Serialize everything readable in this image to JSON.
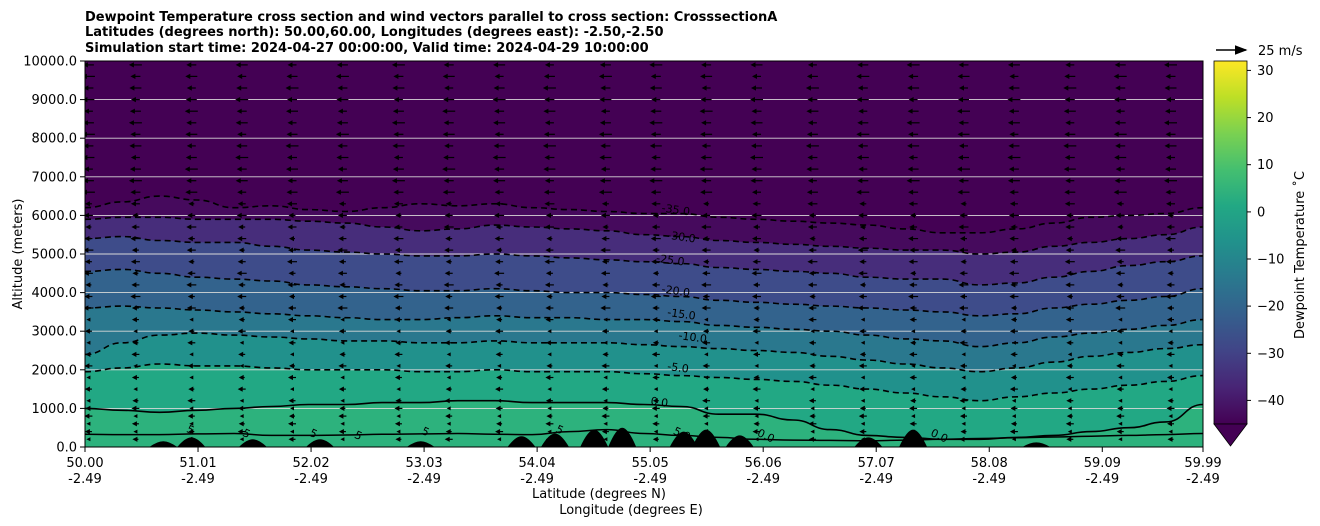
{
  "chart_data": {
    "type": "contour",
    "title": {
      "lines": [
        "Dewpoint Temperature cross section and wind vectors parallel to cross section: CrosssectionA",
        "Latitudes (degrees north): 50.00,60.00, Longitudes (degrees east): -2.50,-2.50",
        "Simulation start time: 2024-04-27 00:00:00, Valid time: 2024-04-29 10:00:00"
      ]
    },
    "xlabel_lat": "Latitude (degrees N)",
    "xlabel_lon": "Longitude (degrees E)",
    "ylabel": "Altitude (meters)",
    "xlim": [
      50.0,
      59.99
    ],
    "ylim": [
      0,
      10000
    ],
    "x_ticks": [
      {
        "lat": "50.00",
        "lon": "-2.49",
        "value": 50.0
      },
      {
        "lat": "51.01",
        "lon": "-2.49",
        "value": 51.01
      },
      {
        "lat": "52.02",
        "lon": "-2.49",
        "value": 52.02
      },
      {
        "lat": "53.03",
        "lon": "-2.49",
        "value": 53.03
      },
      {
        "lat": "54.04",
        "lon": "-2.49",
        "value": 54.04
      },
      {
        "lat": "55.05",
        "lon": "-2.49",
        "value": 55.05
      },
      {
        "lat": "56.06",
        "lon": "-2.49",
        "value": 56.06
      },
      {
        "lat": "57.07",
        "lon": "-2.49",
        "value": 57.07
      },
      {
        "lat": "58.08",
        "lon": "-2.49",
        "value": 58.08
      },
      {
        "lat": "59.09",
        "lon": "-2.49",
        "value": 59.09
      },
      {
        "lat": "59.99",
        "lon": "-2.49",
        "value": 59.99
      }
    ],
    "y_ticks": [
      {
        "label": "0.0",
        "value": 0
      },
      {
        "label": "1000.0",
        "value": 1000
      },
      {
        "label": "2000.0",
        "value": 2000
      },
      {
        "label": "3000.0",
        "value": 3000
      },
      {
        "label": "4000.0",
        "value": 4000
      },
      {
        "label": "5000.0",
        "value": 5000
      },
      {
        "label": "6000.0",
        "value": 6000
      },
      {
        "label": "7000.0",
        "value": 7000
      },
      {
        "label": "8000.0",
        "value": 8000
      },
      {
        "label": "9000.0",
        "value": 9000
      },
      {
        "label": "10000.0",
        "value": 10000
      }
    ],
    "grid": "horizontal",
    "colorbar": {
      "label": "Dewpoint Temperature $^\\circ$C",
      "label_text": "Dewpoint Temperature ˚C",
      "min": -45,
      "max": 32,
      "extend": "min",
      "ticks": [
        {
          "label": "30",
          "value": 30
        },
        {
          "label": "20",
          "value": 20
        },
        {
          "label": "10",
          "value": 10
        },
        {
          "label": "0",
          "value": 0
        },
        {
          "label": "−10",
          "value": -10
        },
        {
          "label": "−20",
          "value": -20
        },
        {
          "label": "−30",
          "value": -30
        },
        {
          "label": "−40",
          "value": -40
        }
      ],
      "colors": [
        "#440154",
        "#482475",
        "#414487",
        "#355f8d",
        "#2a788e",
        "#21918c",
        "#22a884",
        "#44bf70",
        "#7ad151",
        "#bddf26",
        "#fde725"
      ]
    },
    "quiver_key": {
      "label": "25 m/s",
      "speed": 25
    },
    "contour_levels": [
      {
        "label": "-35.0",
        "value": -35,
        "lat": 55.15,
        "z": 6100,
        "heights": [
          6200,
          6350,
          6500,
          6400,
          6200,
          6250,
          6150,
          6100,
          6200,
          6300,
          6250,
          6300,
          6200,
          6150,
          6100,
          6050,
          6050,
          5950,
          5900,
          5850,
          5800,
          5750,
          5650,
          5550,
          5550,
          5650,
          5800,
          5950,
          6000,
          6050,
          6200
        ]
      },
      {
        "label": "-30.0",
        "value": -30,
        "lat": 55.2,
        "z": 5400,
        "heights": [
          5900,
          5950,
          5950,
          5900,
          5900,
          5900,
          5850,
          5800,
          5700,
          5600,
          5650,
          5750,
          5700,
          5650,
          5600,
          5500,
          5450,
          5350,
          5300,
          5250,
          5200,
          5150,
          5100,
          5100,
          5000,
          5050,
          5200,
          5300,
          5400,
          5500,
          5700
        ]
      },
      {
        "label": "-25.0",
        "value": -25,
        "lat": 55.1,
        "z": 4800,
        "heights": [
          5400,
          5450,
          5350,
          5300,
          5300,
          5200,
          5100,
          5050,
          5000,
          4950,
          4950,
          5000,
          4950,
          4900,
          4850,
          4800,
          4750,
          4650,
          4600,
          4550,
          4500,
          4400,
          4350,
          4350,
          4200,
          4250,
          4400,
          4550,
          4700,
          4800,
          4950
        ]
      },
      {
        "label": "-20.0",
        "value": -20,
        "lat": 55.15,
        "z": 4000,
        "heights": [
          4550,
          4600,
          4500,
          4400,
          4350,
          4300,
          4200,
          4150,
          4100,
          4050,
          4050,
          4100,
          4050,
          4000,
          4000,
          3950,
          3900,
          3800,
          3750,
          3700,
          3650,
          3600,
          3550,
          3500,
          3400,
          3450,
          3600,
          3700,
          3800,
          3900,
          4100
        ]
      },
      {
        "label": "-15.0",
        "value": -15,
        "lat": 55.2,
        "z": 3400,
        "heights": [
          3600,
          3650,
          3600,
          3550,
          3500,
          3450,
          3400,
          3350,
          3300,
          3300,
          3350,
          3400,
          3350,
          3350,
          3300,
          3300,
          3250,
          3150,
          3100,
          3050,
          3000,
          2900,
          2800,
          2750,
          2600,
          2700,
          2850,
          2950,
          3050,
          3150,
          3300
        ]
      },
      {
        "label": "-10.0",
        "value": -10,
        "lat": 55.3,
        "z": 2800,
        "heights": [
          2400,
          2700,
          2900,
          2950,
          2900,
          2850,
          2800,
          2750,
          2750,
          2700,
          2700,
          2750,
          2700,
          2700,
          2700,
          2650,
          2600,
          2550,
          2500,
          2450,
          2350,
          2250,
          2150,
          2050,
          1950,
          2050,
          2200,
          2350,
          2450,
          2550,
          2650
        ]
      },
      {
        "label": "-5.0",
        "value": -5,
        "lat": 55.2,
        "z": 2000,
        "heights": [
          1950,
          2050,
          2150,
          2100,
          2100,
          2050,
          2000,
          2000,
          2000,
          1950,
          1950,
          2000,
          1950,
          1950,
          1950,
          1900,
          1850,
          1800,
          1750,
          1700,
          1600,
          1500,
          1400,
          1300,
          1200,
          1300,
          1400,
          1500,
          1600,
          1700,
          1850
        ]
      },
      {
        "label": "0.0",
        "value": 0,
        "lat": 55.05,
        "z": 1100,
        "heights": [
          1000,
          950,
          900,
          950,
          1000,
          1050,
          1100,
          1100,
          1150,
          1150,
          1200,
          1200,
          1150,
          1150,
          1150,
          1100,
          1050,
          850,
          850,
          700,
          450,
          300,
          250,
          200,
          200,
          250,
          300,
          400,
          500,
          650,
          1100
        ]
      }
    ],
    "secondary_labels": [
      {
        "label": "0.0",
        "lat": 57.55,
        "z": 300
      },
      {
        "label": "0.0",
        "lat": 56.0,
        "z": 300
      },
      {
        "label": "5.0",
        "lat": 55.25,
        "z": 350
      },
      {
        "label": "5",
        "lat": 54.2,
        "z": 400
      },
      {
        "label": "5",
        "lat": 53.0,
        "z": 350
      },
      {
        "label": "5",
        "lat": 52.4,
        "z": 250
      },
      {
        "label": "5",
        "lat": 52.0,
        "z": 300
      },
      {
        "label": "5",
        "lat": 51.4,
        "z": 300
      },
      {
        "label": "5",
        "lat": 50.9,
        "z": 400
      }
    ],
    "terrain_peaks": [
      {
        "lat": 50.7,
        "z": 150
      },
      {
        "lat": 50.95,
        "z": 250
      },
      {
        "lat": 51.5,
        "z": 200
      },
      {
        "lat": 52.1,
        "z": 200
      },
      {
        "lat": 53.0,
        "z": 150
      },
      {
        "lat": 53.9,
        "z": 280
      },
      {
        "lat": 54.2,
        "z": 350
      },
      {
        "lat": 54.55,
        "z": 450
      },
      {
        "lat": 54.8,
        "z": 500
      },
      {
        "lat": 55.35,
        "z": 400
      },
      {
        "lat": 55.55,
        "z": 450
      },
      {
        "lat": 55.85,
        "z": 300
      },
      {
        "lat": 57.0,
        "z": 250
      },
      {
        "lat": 57.4,
        "z": 450
      },
      {
        "lat": 58.5,
        "z": 120
      }
    ],
    "wind_levels_m": [
      200,
      400,
      600,
      800,
      1000,
      1200,
      1500,
      1800,
      2100,
      2400,
      2700,
      3000,
      3300,
      3600,
      3900,
      4200,
      4500,
      4800,
      5100,
      5400,
      5700,
      6000,
      6300,
      6600,
      6900,
      7200,
      7500,
      7800,
      8100,
      8400,
      8700,
      9000,
      9300,
      9600,
      9900
    ],
    "wind_columns_lat": [
      50.03,
      50.45,
      50.95,
      51.4,
      51.85,
      52.3,
      52.8,
      53.25,
      53.7,
      54.15,
      54.65,
      55.1,
      55.55,
      56.0,
      56.5,
      56.95,
      57.4,
      57.85,
      58.3,
      58.8,
      59.25,
      59.7
    ]
  }
}
